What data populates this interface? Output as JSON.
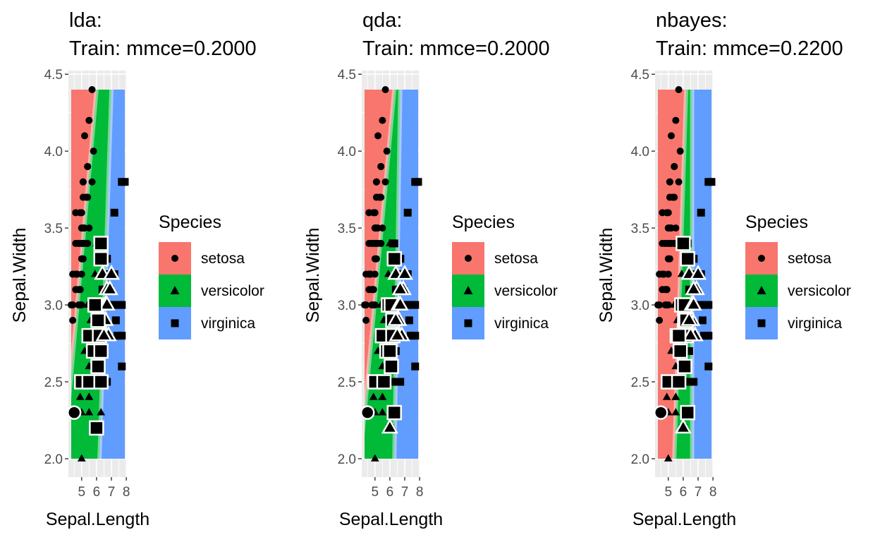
{
  "chart_data": [
    {
      "type": "scatter",
      "title_line1": "lda:",
      "title_line2": "Train: mmce=0.2000",
      "xlabel": "Sepal.Length",
      "ylabel": "Sepal.Width",
      "xlim": [
        4.3,
        7.9
      ],
      "ylim": [
        2.0,
        4.4
      ],
      "x_ticks": [
        "5",
        "6",
        "7",
        "8"
      ],
      "y_ticks": [
        "2.0",
        "2.5",
        "3.0",
        "3.5",
        "4.0",
        "4.5"
      ],
      "boundary": {
        "setosa_versicolor": [
          [
            4.3,
            2.55
          ],
          [
            6.0,
            4.4
          ]
        ],
        "versicolor_virginica": [
          [
            6.2,
            2.0
          ],
          [
            7.0,
            4.4
          ]
        ]
      },
      "legend_title": "Species",
      "legend": [
        "setosa",
        "versicolor",
        "virginica"
      ]
    },
    {
      "type": "scatter",
      "title_line1": "qda:",
      "title_line2": "Train: mmce=0.2000",
      "xlabel": "Sepal.Length",
      "ylabel": "Sepal.Width",
      "xlim": [
        4.3,
        7.9
      ],
      "ylim": [
        2.0,
        4.4
      ],
      "x_ticks": [
        "5",
        "6",
        "7",
        "8"
      ],
      "y_ticks": [
        "2.0",
        "2.5",
        "3.0",
        "3.5",
        "4.0",
        "4.5"
      ],
      "boundary": {
        "setosa_versicolor": [
          [
            4.3,
            2.3
          ],
          [
            6.3,
            4.4
          ]
        ],
        "versicolor_virginica": [
          [
            6.3,
            2.0
          ],
          [
            6.7,
            4.4
          ]
        ]
      },
      "legend_title": "Species",
      "legend": [
        "setosa",
        "versicolor",
        "virginica"
      ]
    },
    {
      "type": "scatter",
      "title_line1": "nbayes:",
      "title_line2": "Train: mmce=0.2200",
      "xlabel": "Sepal.Length",
      "ylabel": "Sepal.Width",
      "xlim": [
        4.3,
        7.9
      ],
      "ylim": [
        2.0,
        4.4
      ],
      "x_ticks": [
        "5",
        "6",
        "7",
        "8"
      ],
      "y_ticks": [
        "2.0",
        "2.5",
        "3.0",
        "3.5",
        "4.0",
        "4.5"
      ],
      "boundary": {
        "setosa_versicolor": [
          [
            5.5,
            2.3
          ],
          [
            6.2,
            4.4
          ]
        ],
        "versicolor_virginica": [
          [
            6.6,
            2.0
          ],
          [
            6.6,
            4.4
          ]
        ]
      },
      "legend_title": "Species",
      "legend": [
        "setosa",
        "versicolor",
        "virginica"
      ]
    }
  ],
  "colors": {
    "setosa": "#F8766D",
    "versicolor": "#00BA38",
    "virginica": "#619CFF"
  },
  "points": {
    "setosa": [
      [
        5.1,
        3.5
      ],
      [
        4.9,
        3.0
      ],
      [
        4.7,
        3.2
      ],
      [
        4.6,
        3.1
      ],
      [
        5.0,
        3.6
      ],
      [
        5.4,
        3.9
      ],
      [
        4.6,
        3.4
      ],
      [
        5.0,
        3.4
      ],
      [
        4.4,
        2.9
      ],
      [
        4.9,
        3.1
      ],
      [
        5.4,
        3.7
      ],
      [
        4.8,
        3.4
      ],
      [
        4.8,
        3.0
      ],
      [
        4.3,
        3.0
      ],
      [
        5.8,
        4.0
      ],
      [
        5.7,
        4.4
      ],
      [
        5.4,
        3.9
      ],
      [
        5.1,
        3.5
      ],
      [
        5.7,
        3.8
      ],
      [
        5.1,
        3.8
      ],
      [
        5.4,
        3.4
      ],
      [
        5.1,
        3.7
      ],
      [
        4.6,
        3.6
      ],
      [
        5.1,
        3.3
      ],
      [
        4.8,
        3.4
      ],
      [
        5.0,
        3.0
      ],
      [
        5.0,
        3.4
      ],
      [
        5.2,
        3.5
      ],
      [
        5.2,
        3.4
      ],
      [
        4.7,
        3.2
      ],
      [
        4.8,
        3.1
      ],
      [
        5.4,
        3.4
      ],
      [
        5.2,
        4.1
      ],
      [
        5.5,
        4.2
      ],
      [
        4.9,
        3.1
      ],
      [
        5.0,
        3.2
      ],
      [
        5.5,
        3.5
      ],
      [
        4.9,
        3.6
      ],
      [
        4.4,
        3.0
      ],
      [
        5.1,
        3.4
      ],
      [
        5.0,
        3.5
      ],
      [
        4.4,
        3.2
      ],
      [
        5.0,
        3.5
      ],
      [
        5.1,
        3.8
      ],
      [
        4.8,
        3.0
      ],
      [
        5.1,
        3.8
      ],
      [
        4.6,
        3.2
      ],
      [
        5.3,
        3.7
      ],
      [
        5.0,
        3.3
      ]
    ],
    "versicolor": [
      [
        7.0,
        3.2
      ],
      [
        6.4,
        3.2
      ],
      [
        6.9,
        3.1
      ],
      [
        5.5,
        2.3
      ],
      [
        6.5,
        2.8
      ],
      [
        5.7,
        2.8
      ],
      [
        6.3,
        3.3
      ],
      [
        4.9,
        2.4
      ],
      [
        6.6,
        2.9
      ],
      [
        5.2,
        2.7
      ],
      [
        5.0,
        2.0
      ],
      [
        5.9,
        3.0
      ],
      [
        6.0,
        2.2
      ],
      [
        6.1,
        2.9
      ],
      [
        5.6,
        2.9
      ],
      [
        6.7,
        3.1
      ],
      [
        5.6,
        3.0
      ],
      [
        5.8,
        2.7
      ],
      [
        6.2,
        2.2
      ],
      [
        5.6,
        2.5
      ],
      [
        5.9,
        3.2
      ],
      [
        6.1,
        2.8
      ],
      [
        6.3,
        2.5
      ],
      [
        6.4,
        2.9
      ],
      [
        6.6,
        3.0
      ],
      [
        6.8,
        2.8
      ],
      [
        6.7,
        3.0
      ],
      [
        6.0,
        2.9
      ],
      [
        5.7,
        2.6
      ],
      [
        5.5,
        2.4
      ],
      [
        5.5,
        2.4
      ],
      [
        5.8,
        2.7
      ],
      [
        6.0,
        2.7
      ],
      [
        5.4,
        3.0
      ],
      [
        6.0,
        3.4
      ],
      [
        6.7,
        3.1
      ],
      [
        6.3,
        2.3
      ],
      [
        5.6,
        3.0
      ],
      [
        5.5,
        2.5
      ],
      [
        5.5,
        2.6
      ],
      [
        6.1,
        3.0
      ],
      [
        5.8,
        2.6
      ],
      [
        5.0,
        2.3
      ],
      [
        5.6,
        2.7
      ],
      [
        5.7,
        3.0
      ],
      [
        5.7,
        2.9
      ],
      [
        6.2,
        2.9
      ],
      [
        5.1,
        2.5
      ],
      [
        5.7,
        2.8
      ]
    ],
    "virginica": [
      [
        6.3,
        3.3
      ],
      [
        5.8,
        2.7
      ],
      [
        7.1,
        3.0
      ],
      [
        6.3,
        2.9
      ],
      [
        6.5,
        3.0
      ],
      [
        7.6,
        3.0
      ],
      [
        4.9,
        2.5
      ],
      [
        7.3,
        2.9
      ],
      [
        6.7,
        2.5
      ],
      [
        7.2,
        3.6
      ],
      [
        6.5,
        3.2
      ],
      [
        6.4,
        2.7
      ],
      [
        6.8,
        3.0
      ],
      [
        5.7,
        2.5
      ],
      [
        5.8,
        2.8
      ],
      [
        6.4,
        3.2
      ],
      [
        6.5,
        3.0
      ],
      [
        7.7,
        3.8
      ],
      [
        7.7,
        2.6
      ],
      [
        6.0,
        2.2
      ],
      [
        6.9,
        3.2
      ],
      [
        5.6,
        2.8
      ],
      [
        7.7,
        2.8
      ],
      [
        6.3,
        2.7
      ],
      [
        6.7,
        3.3
      ],
      [
        7.2,
        3.2
      ],
      [
        6.2,
        2.8
      ],
      [
        6.1,
        3.0
      ],
      [
        6.4,
        2.8
      ],
      [
        7.2,
        3.0
      ],
      [
        7.4,
        2.8
      ],
      [
        7.9,
        3.8
      ],
      [
        6.4,
        2.8
      ],
      [
        6.3,
        2.8
      ],
      [
        6.1,
        2.6
      ],
      [
        7.7,
        3.0
      ],
      [
        6.3,
        3.4
      ],
      [
        6.4,
        3.1
      ],
      [
        6.0,
        3.0
      ],
      [
        6.9,
        3.1
      ],
      [
        6.7,
        3.1
      ],
      [
        6.9,
        3.1
      ],
      [
        5.8,
        2.7
      ],
      [
        6.8,
        3.2
      ],
      [
        6.7,
        3.3
      ],
      [
        6.7,
        3.0
      ],
      [
        6.3,
        2.5
      ],
      [
        6.5,
        3.0
      ],
      [
        6.2,
        3.4
      ],
      [
        5.9,
        3.0
      ]
    ]
  },
  "misclassified": [
    [
      [
        4.5,
        2.3
      ],
      [
        5.0,
        2.5
      ],
      [
        5.5,
        2.5
      ],
      [
        5.5,
        2.8
      ],
      [
        5.8,
        2.7
      ],
      [
        6.1,
        2.6
      ],
      [
        6.2,
        2.8
      ],
      [
        6.3,
        2.7
      ],
      [
        6.3,
        3.4
      ],
      [
        6.0,
        2.2
      ],
      [
        6.3,
        3.3
      ],
      [
        6.4,
        3.2
      ],
      [
        6.4,
        2.9
      ],
      [
        6.2,
        2.9
      ],
      [
        6.3,
        2.5
      ],
      [
        6.0,
        3.0
      ],
      [
        6.6,
        2.9
      ],
      [
        6.7,
        3.1
      ],
      [
        6.9,
        3.1
      ],
      [
        7.0,
        3.2
      ],
      [
        6.6,
        3.0
      ],
      [
        6.8,
        2.8
      ],
      [
        6.5,
        2.8
      ],
      [
        6.7,
        3.0
      ],
      [
        6.1,
        2.9
      ],
      [
        5.9,
        3.0
      ]
    ],
    [
      [
        4.5,
        2.3
      ],
      [
        5.0,
        2.5
      ],
      [
        5.6,
        2.5
      ],
      [
        5.5,
        2.8
      ],
      [
        5.8,
        2.7
      ],
      [
        6.1,
        2.6
      ],
      [
        6.2,
        2.8
      ],
      [
        6.2,
        2.9
      ],
      [
        6.0,
        2.2
      ],
      [
        5.9,
        3.0
      ],
      [
        6.1,
        3.0
      ],
      [
        6.3,
        3.3
      ],
      [
        6.4,
        3.2
      ],
      [
        6.9,
        3.1
      ],
      [
        7.0,
        3.2
      ],
      [
        6.6,
        2.9
      ],
      [
        6.7,
        3.1
      ],
      [
        6.6,
        3.0
      ],
      [
        6.8,
        2.8
      ],
      [
        6.5,
        2.8
      ],
      [
        6.3,
        2.3
      ],
      [
        6.7,
        3.0
      ],
      [
        6.4,
        2.9
      ],
      [
        6.0,
        2.7
      ]
    ],
    [
      [
        4.5,
        2.3
      ],
      [
        5.0,
        2.5
      ],
      [
        5.7,
        2.5
      ],
      [
        5.6,
        2.8
      ],
      [
        5.8,
        2.7
      ],
      [
        6.1,
        2.6
      ],
      [
        6.2,
        2.8
      ],
      [
        6.0,
        2.2
      ],
      [
        5.9,
        3.0
      ],
      [
        6.1,
        3.0
      ],
      [
        6.1,
        2.9
      ],
      [
        6.3,
        3.3
      ],
      [
        6.0,
        3.4
      ],
      [
        6.4,
        3.2
      ],
      [
        6.9,
        3.1
      ],
      [
        7.0,
        3.2
      ],
      [
        6.6,
        2.9
      ],
      [
        6.7,
        3.1
      ],
      [
        6.6,
        3.0
      ],
      [
        6.8,
        2.8
      ],
      [
        6.5,
        2.8
      ],
      [
        6.3,
        2.3
      ],
      [
        6.7,
        3.0
      ],
      [
        6.2,
        2.9
      ],
      [
        6.4,
        2.9
      ],
      [
        5.7,
        2.8
      ]
    ]
  ]
}
